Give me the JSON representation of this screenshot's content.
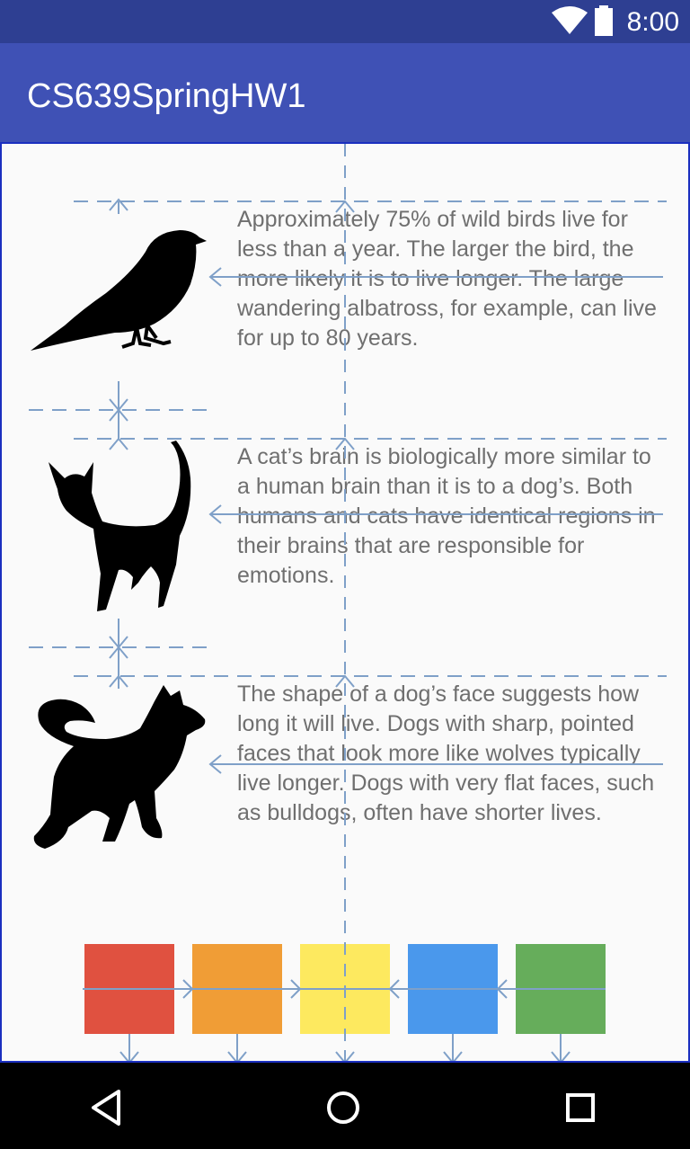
{
  "status_bar": {
    "time": "8:00",
    "icons": [
      "wifi-icon",
      "battery-icon"
    ]
  },
  "app_bar": {
    "title": "CS639SpringHW1"
  },
  "facts": [
    {
      "animal": "bird",
      "text": "Approximately 75% of wild birds live for less than a year. The larger the bird, the more likely it is to live longer. The large wandering albatross, for example, can live for up to 80 years."
    },
    {
      "animal": "cat",
      "text": "A cat’s brain is biologically more similar to a human brain than it is to a dog’s. Both humans and cats have identical regions in their brains that are responsible for emotions."
    },
    {
      "animal": "dog",
      "text": "The shape of a dog’s face suggests how long it will live. Dogs with sharp, pointed faces that look more like wolves typically live longer. Dogs with very flat faces, such as bulldogs, often have shorter lives."
    }
  ],
  "color_squares": [
    "#e05140",
    "#f09d36",
    "#fde95f",
    "#4a98ec",
    "#66ad5b"
  ],
  "nav_bar": {
    "buttons": [
      "back-icon",
      "home-icon",
      "recents-icon"
    ]
  },
  "colors": {
    "status_bar": "#2e3f92",
    "app_bar": "#3f51b5",
    "text": "#6f6f6f",
    "constraint_lines": "#7fa0c8"
  }
}
